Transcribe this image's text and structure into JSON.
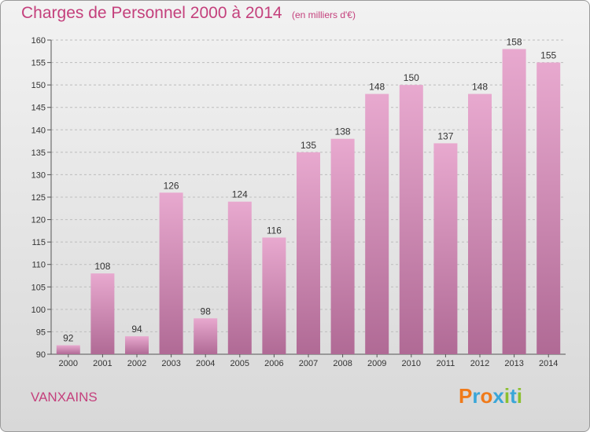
{
  "header": {
    "title": "Charges de Personnel 2000 à 2014",
    "subtitle": "(en milliers d'€)"
  },
  "footer": {
    "commune": "VANXAINS",
    "logo": "Proxiti"
  },
  "colors": {
    "accent": "#c4407c",
    "bar_light": "#e8a9cf",
    "bar_dark": "#b06a95",
    "logo_letters": [
      "#f07a1a",
      "#3aa6d8",
      "#f07a1a",
      "#3aa6d8",
      "#8bbf2f",
      "#3aa6d8",
      "#8bbf2f"
    ]
  },
  "chart_data": {
    "type": "bar",
    "title": "Charges de Personnel 2000 à 2014",
    "subtitle": "(en milliers d'€)",
    "categories": [
      "2000",
      "2001",
      "2002",
      "2003",
      "2004",
      "2005",
      "2006",
      "2007",
      "2008",
      "2009",
      "2010",
      "2011",
      "2012",
      "2013",
      "2014"
    ],
    "values": [
      92,
      108,
      94,
      126,
      98,
      124,
      116,
      135,
      138,
      148,
      150,
      137,
      148,
      158,
      155
    ],
    "ylim": [
      90,
      160
    ],
    "yticks": [
      90,
      95,
      100,
      105,
      110,
      115,
      120,
      125,
      130,
      135,
      140,
      145,
      150,
      155,
      160
    ],
    "grid": true,
    "data_labels": true
  }
}
